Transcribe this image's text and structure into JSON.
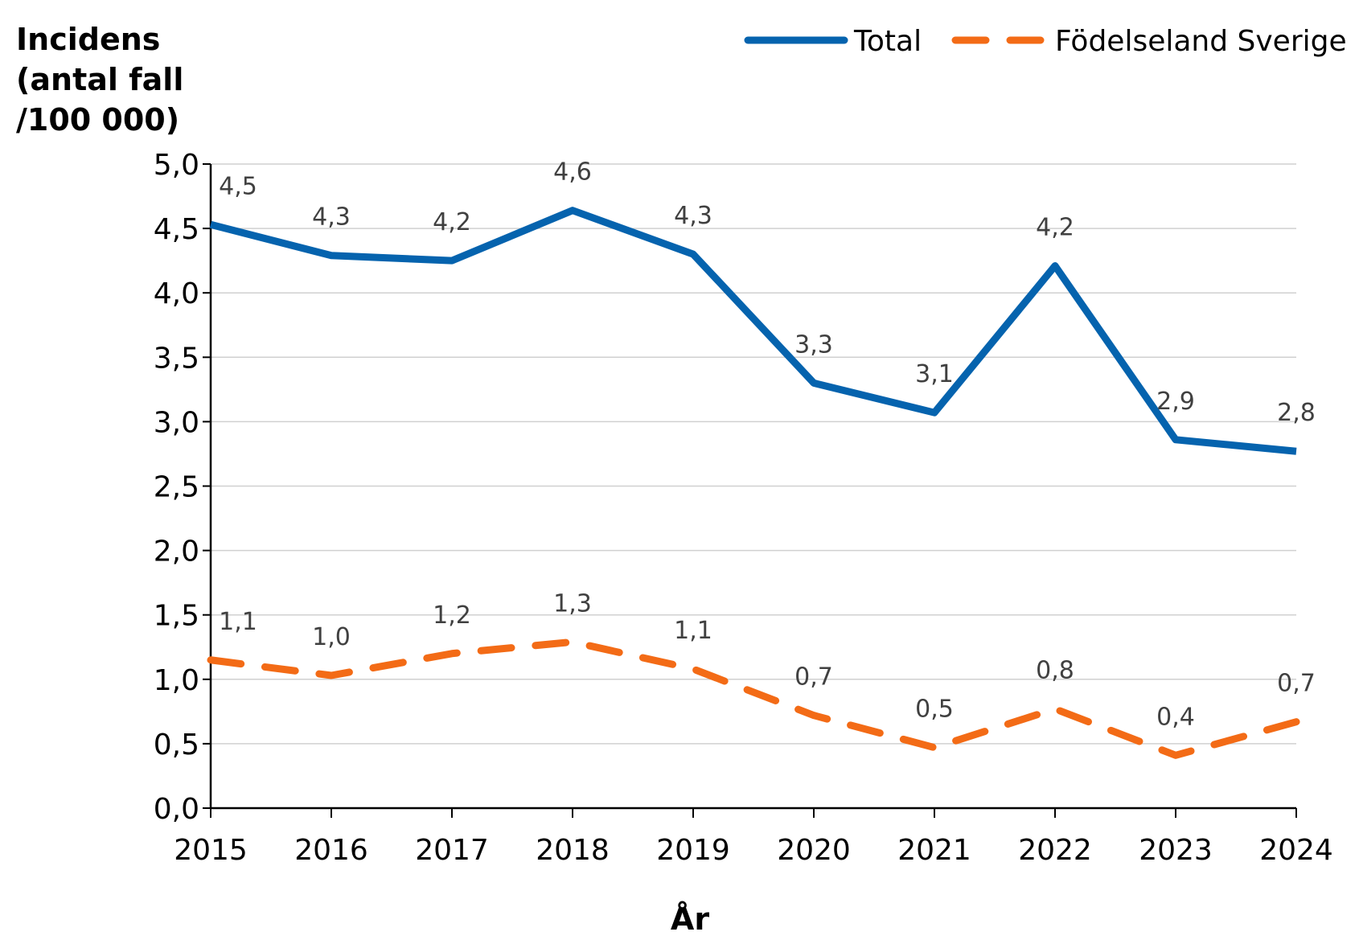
{
  "chart_data": {
    "type": "line",
    "ylabel_lines": [
      "Incidens",
      "(antal fall",
      "/100 000)"
    ],
    "xlabel": "År",
    "x": [
      "2015",
      "2016",
      "2017",
      "2018",
      "2019",
      "2020",
      "2021",
      "2022",
      "2023",
      "2024"
    ],
    "ylim": [
      0,
      5
    ],
    "yticks": [
      "0,0",
      "0,5",
      "1,0",
      "1,5",
      "2,0",
      "2,5",
      "3,0",
      "3,5",
      "4,0",
      "4,5",
      "5,0"
    ],
    "grid": true,
    "legend_position": "top-right",
    "series": [
      {
        "name": "Total",
        "color": "#0563AE",
        "style": "solid",
        "values": [
          4.53,
          4.29,
          4.25,
          4.64,
          4.3,
          3.3,
          3.07,
          4.21,
          2.86,
          2.77
        ],
        "labels": [
          "4,5",
          "4,3",
          "4,2",
          "4,6",
          "4,3",
          "3,3",
          "3,1",
          "4,2",
          "2,9",
          "2,8"
        ]
      },
      {
        "name": "Födelseland Sverige",
        "color": "#F36B16",
        "style": "dashed",
        "values": [
          1.15,
          1.03,
          1.2,
          1.29,
          1.08,
          0.72,
          0.47,
          0.77,
          0.41,
          0.67
        ],
        "labels": [
          "1,1",
          "1,0",
          "1,2",
          "1,3",
          "1,1",
          "0,7",
          "0,5",
          "0,8",
          "0,4",
          "0,7"
        ]
      }
    ]
  }
}
